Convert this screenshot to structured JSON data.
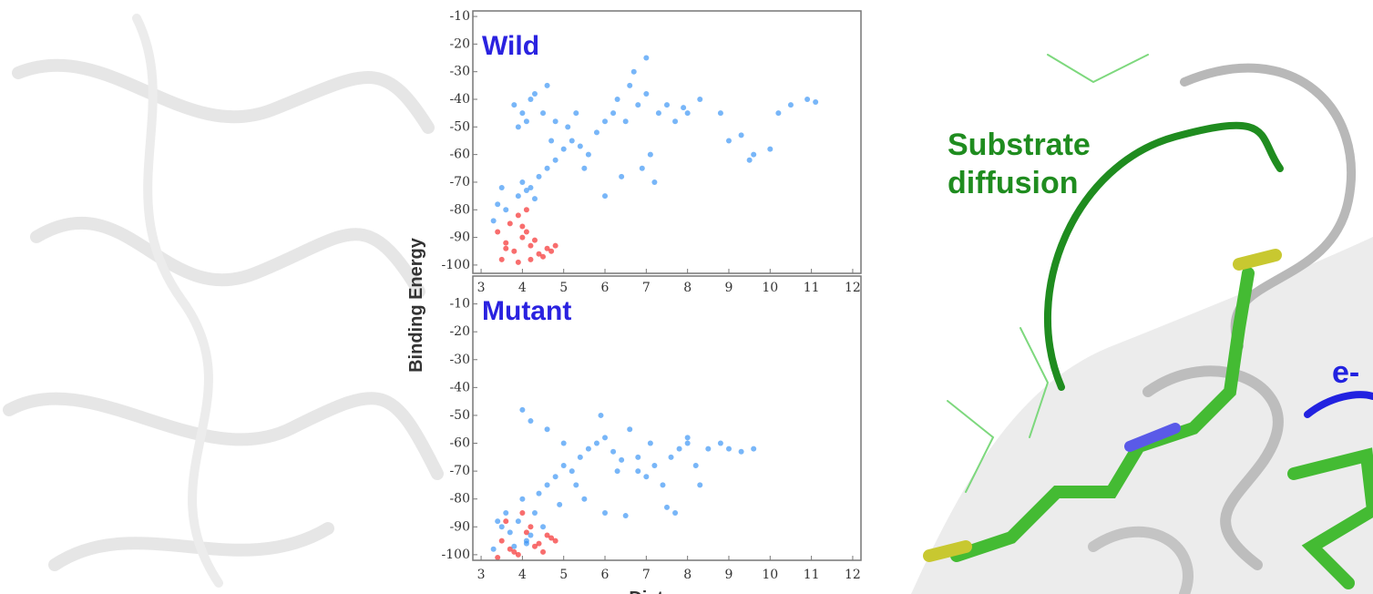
{
  "chart_data": [
    {
      "type": "scatter",
      "title": "Wild",
      "ylabel": "Binding Energy",
      "xlim": [
        2.8,
        12.2
      ],
      "ylim": [
        -103,
        -8
      ],
      "xticks": [
        3,
        4,
        5,
        6,
        7,
        8,
        9,
        10,
        11,
        12
      ],
      "yticks": [
        -10,
        -20,
        -30,
        -40,
        -50,
        -60,
        -70,
        -80,
        -90,
        -100
      ],
      "series": [
        {
          "color": "#2f8ff5",
          "x": [
            3.8,
            4.0,
            4.2,
            3.9,
            4.1,
            4.3,
            4.5,
            4.7,
            4.0,
            4.2,
            4.4,
            4.6,
            4.8,
            5.0,
            5.2,
            5.4,
            3.9,
            4.1,
            4.3,
            3.4,
            3.3,
            3.5,
            3.6,
            4.8,
            5.1,
            5.3,
            5.6,
            5.8,
            6.0,
            6.2,
            6.3,
            6.5,
            6.6,
            6.8,
            7.0,
            7.1,
            7.3,
            7.5,
            6.9,
            7.2,
            7.7,
            8.0,
            8.3,
            7.9,
            6.0,
            6.4,
            5.5,
            9.0,
            9.3,
            9.5,
            9.6,
            10.0,
            10.2,
            10.5,
            10.9,
            11.1,
            8.8,
            6.7,
            7.0,
            4.6
          ],
          "values": [
            -42,
            -45,
            -40,
            -50,
            -48,
            -38,
            -45,
            -55,
            -70,
            -72,
            -68,
            -65,
            -62,
            -58,
            -55,
            -57,
            -75,
            -73,
            -76,
            -78,
            -84,
            -72,
            -80,
            -48,
            -50,
            -45,
            -60,
            -52,
            -48,
            -45,
            -40,
            -48,
            -35,
            -42,
            -38,
            -60,
            -45,
            -42,
            -65,
            -70,
            -48,
            -45,
            -40,
            -43,
            -75,
            -68,
            -65,
            -55,
            -53,
            -62,
            -60,
            -58,
            -45,
            -42,
            -40,
            -41,
            -45,
            -30,
            -25,
            -35
          ]
        },
        {
          "color": "#f51e1e",
          "x": [
            3.4,
            3.6,
            3.8,
            4.0,
            4.2,
            4.4,
            4.6,
            4.8,
            3.5,
            3.7,
            3.9,
            4.1,
            4.3,
            4.5,
            3.9,
            4.1,
            4.0,
            3.6,
            4.2,
            4.7
          ],
          "values": [
            -88,
            -92,
            -95,
            -90,
            -93,
            -96,
            -94,
            -93,
            -98,
            -85,
            -82,
            -88,
            -91,
            -97,
            -99,
            -80,
            -86,
            -94,
            -98,
            -95
          ]
        }
      ]
    },
    {
      "type": "scatter",
      "title": "Mutant",
      "xlabel": "Distance",
      "xlim": [
        2.8,
        12.2
      ],
      "ylim": [
        -102,
        0
      ],
      "xticks": [
        3,
        4,
        5,
        6,
        7,
        8,
        9,
        10,
        11,
        12
      ],
      "yticks": [
        -10,
        -20,
        -30,
        -40,
        -50,
        -60,
        -70,
        -80,
        -90,
        -100
      ],
      "series": [
        {
          "color": "#f51e1e",
          "x": [
            3.5,
            3.7,
            3.9,
            4.1,
            4.3,
            4.5,
            4.7,
            4.8,
            3.6,
            4.0,
            4.4,
            3.4,
            4.6,
            4.2,
            3.8
          ],
          "values": [
            -95,
            -98,
            -100,
            -92,
            -97,
            -99,
            -94,
            -95,
            -88,
            -85,
            -96,
            -101,
            -93,
            -90,
            -99
          ]
        },
        {
          "color": "#2f8ff5",
          "x": [
            3.5,
            3.7,
            3.9,
            4.1,
            4.3,
            4.0,
            3.8,
            4.2,
            3.6,
            4.4,
            4.6,
            4.8,
            5.0,
            5.2,
            5.4,
            5.6,
            5.8,
            6.0,
            6.2,
            6.4,
            6.6,
            6.8,
            7.0,
            7.2,
            7.4,
            7.6,
            7.8,
            8.0,
            8.2,
            8.5,
            8.8,
            9.0,
            9.3,
            9.6,
            4.0,
            4.2,
            4.6,
            5.5,
            6.0,
            6.5,
            7.5,
            7.7,
            8.0,
            4.5,
            5.0,
            3.3,
            3.4,
            4.9,
            5.3,
            6.3,
            7.1,
            5.9,
            6.8,
            8.3,
            4.1
          ],
          "values": [
            -90,
            -92,
            -88,
            -95,
            -85,
            -80,
            -97,
            -93,
            -85,
            -78,
            -75,
            -72,
            -68,
            -70,
            -65,
            -62,
            -60,
            -58,
            -63,
            -66,
            -55,
            -70,
            -72,
            -68,
            -75,
            -65,
            -62,
            -60,
            -68,
            -62,
            -60,
            -62,
            -63,
            -62,
            -48,
            -52,
            -55,
            -80,
            -85,
            -86,
            -83,
            -85,
            -58,
            -90,
            -60,
            -98,
            -88,
            -82,
            -75,
            -70,
            -60,
            -50,
            -65,
            -75,
            -96
          ]
        }
      ]
    }
  ],
  "annotations": [
    "Substrate",
    "diffusion",
    "e-"
  ]
}
